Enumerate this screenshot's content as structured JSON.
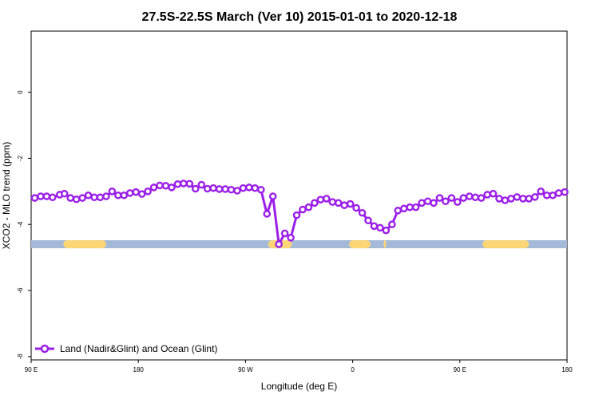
{
  "chart_data": {
    "type": "line",
    "title": "27.5S-22.5S March (Ver 10)   2015-01-01 to 2020-12-18",
    "xlabel": "Longitude (deg E)",
    "ylabel": "XCO2 - MLO trend (ppm)",
    "x_ticks": [
      {
        "value": 90,
        "label": "90 E"
      },
      {
        "value": 180,
        "label": "180"
      },
      {
        "value": 270,
        "label": "90 W"
      },
      {
        "value": 360,
        "label": "0"
      },
      {
        "value": 450,
        "label": "90 E"
      },
      {
        "value": 540,
        "label": "180"
      }
    ],
    "y_ticks": [
      {
        "value": 0,
        "label": "0"
      },
      {
        "value": -2,
        "label": "-2"
      },
      {
        "value": -4,
        "label": "-4"
      },
      {
        "value": -6,
        "label": "-6"
      },
      {
        "value": -8,
        "label": "-8"
      }
    ],
    "xlim": [
      90,
      540
    ],
    "ylim": [
      -8.1,
      1.85
    ],
    "grid": false,
    "legend": {
      "position": "bottom-left",
      "entries": [
        "Land (Nadir&Glint) and Ocean (Glint)"
      ]
    },
    "series": [
      {
        "name": "Land (Nadir&Glint) and Ocean (Glint)",
        "color": "#9b1fe8",
        "x": [
          93,
          98,
          103,
          108,
          114,
          118,
          123,
          128,
          133,
          138,
          143,
          148,
          153,
          158,
          163,
          168,
          173,
          178,
          183,
          188,
          193,
          198,
          203,
          208,
          213,
          218,
          223,
          228,
          233,
          238,
          243,
          248,
          253,
          258,
          263,
          268,
          273,
          278,
          283,
          288,
          293,
          298,
          303,
          308,
          313,
          318,
          323,
          328,
          333,
          338,
          343,
          348,
          353,
          358,
          363,
          368,
          373,
          378,
          383,
          388,
          393,
          398,
          403,
          408,
          413,
          418,
          423,
          428,
          433,
          438,
          443,
          448,
          453,
          458,
          463,
          468,
          473,
          478,
          483,
          488,
          493,
          498,
          503,
          508,
          513,
          518,
          523,
          528,
          533,
          538
        ],
        "y": [
          -3.2,
          -3.15,
          -3.15,
          -3.18,
          -3.1,
          -3.07,
          -3.2,
          -3.24,
          -3.2,
          -3.12,
          -3.18,
          -3.18,
          -3.15,
          -3.0,
          -3.12,
          -3.12,
          -3.05,
          -3.02,
          -3.08,
          -3.0,
          -2.88,
          -2.82,
          -2.83,
          -2.88,
          -2.78,
          -2.76,
          -2.77,
          -2.92,
          -2.8,
          -2.92,
          -2.9,
          -2.93,
          -2.93,
          -2.95,
          -2.98,
          -2.9,
          -2.88,
          -2.9,
          -2.95,
          -3.68,
          -3.15,
          -4.6,
          -4.27,
          -4.4,
          -3.72,
          -3.55,
          -3.48,
          -3.35,
          -3.25,
          -3.22,
          -3.32,
          -3.35,
          -3.42,
          -3.38,
          -3.5,
          -3.65,
          -3.88,
          -4.05,
          -4.1,
          -4.18,
          -4.0,
          -3.58,
          -3.52,
          -3.48,
          -3.48,
          -3.35,
          -3.3,
          -3.35,
          -3.2,
          -3.3,
          -3.2,
          -3.32,
          -3.2,
          -3.15,
          -3.18,
          -3.2,
          -3.1,
          -3.07,
          -3.22,
          -3.27,
          -3.22,
          -3.17,
          -3.22,
          -3.22,
          -3.17,
          -3.0,
          -3.12,
          -3.12,
          -3.05,
          -3.02
        ]
      }
    ],
    "surface_band": {
      "y": -4.6,
      "ocean_color": "#a4b8d8",
      "land_color": "#fcd675",
      "land_segments": [
        [
          117,
          153
        ],
        [
          289,
          309
        ],
        [
          357,
          375
        ],
        [
          386,
          387
        ],
        [
          469,
          508
        ]
      ]
    }
  }
}
